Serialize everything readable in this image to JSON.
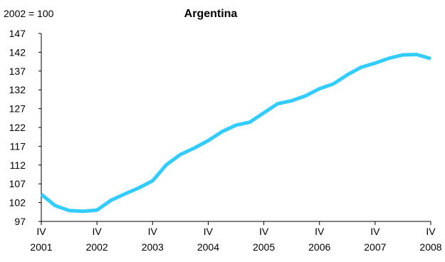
{
  "chart_data": {
    "type": "line",
    "title": "Argentina",
    "ylabel": "2002 = 100",
    "xlabel": "",
    "ylim": [
      97,
      147
    ],
    "yticks": [
      97,
      102,
      107,
      112,
      117,
      122,
      127,
      132,
      137,
      142,
      147
    ],
    "grid": false,
    "legend": "none",
    "line_color": "#33ccff",
    "x_tick_labels": [
      {
        "q": "IV",
        "year": "2001"
      },
      {
        "q": "IV",
        "year": "2002"
      },
      {
        "q": "IV",
        "year": "2003"
      },
      {
        "q": "IV",
        "year": "2004"
      },
      {
        "q": "IV",
        "year": "2005"
      },
      {
        "q": "IV",
        "year": "2006"
      },
      {
        "q": "IV",
        "year": "2007"
      },
      {
        "q": "IV",
        "year": "2008"
      }
    ],
    "x": [
      "2001-Q4",
      "2002-Q1",
      "2002-Q2",
      "2002-Q3",
      "2002-Q4",
      "2003-Q1",
      "2003-Q2",
      "2003-Q3",
      "2003-Q4",
      "2004-Q1",
      "2004-Q2",
      "2004-Q3",
      "2004-Q4",
      "2005-Q1",
      "2005-Q2",
      "2005-Q3",
      "2005-Q4",
      "2006-Q1",
      "2006-Q2",
      "2006-Q3",
      "2006-Q4",
      "2007-Q1",
      "2007-Q2",
      "2007-Q3",
      "2007-Q4",
      "2008-Q1",
      "2008-Q2",
      "2008-Q3",
      "2008-Q4"
    ],
    "series": [
      {
        "values": [
          104.2,
          101.2,
          99.9,
          99.7,
          100.0,
          102.6,
          104.3,
          105.9,
          107.8,
          112.1,
          114.8,
          116.5,
          118.5,
          120.9,
          122.6,
          123.4,
          125.9,
          128.3,
          129.1,
          130.4,
          132.3,
          133.6,
          136.0,
          138.0,
          139.1,
          140.4,
          141.3,
          141.4,
          140.3
        ]
      }
    ]
  }
}
